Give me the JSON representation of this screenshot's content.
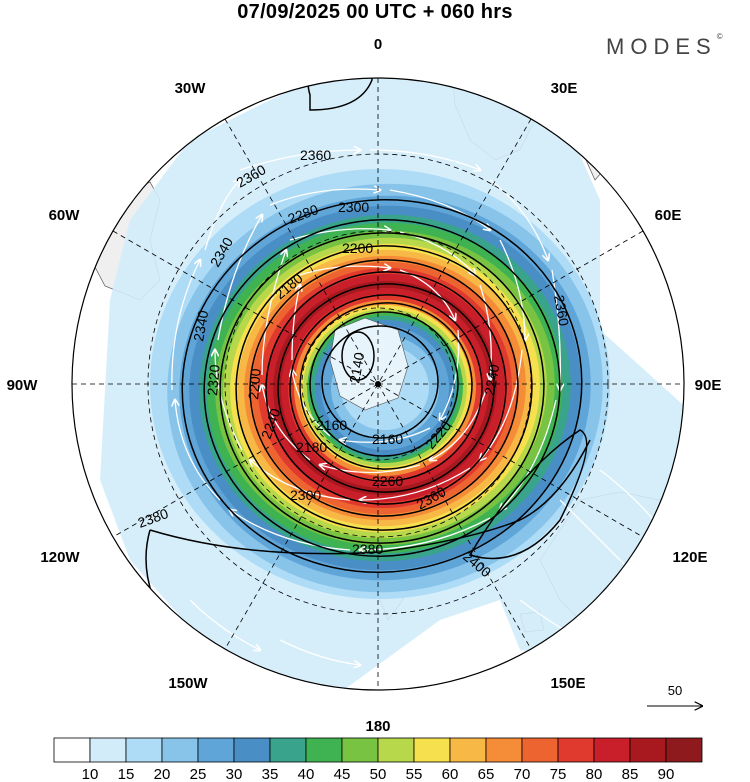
{
  "title": "07/09/2025  00 UTC  + 060 hrs",
  "brand": "MODES",
  "brand_mark": "©",
  "longitude_labels": [
    "0",
    "30E",
    "60E",
    "90E",
    "120E",
    "150E",
    "180",
    "150W",
    "120W",
    "90W",
    "60W",
    "30W"
  ],
  "contour_labels": [
    "2140",
    "2160",
    "2160",
    "2180",
    "2180",
    "2200",
    "2200",
    "2220",
    "2240",
    "2240",
    "2260",
    "2280",
    "2300",
    "2300",
    "2320",
    "2340",
    "2340",
    "2360",
    "2360",
    "2360",
    "2360",
    "2380",
    "2380",
    "2400"
  ],
  "vector_reference": "50",
  "colorbar": {
    "colors": [
      "#ffffff",
      "#d2ecfa",
      "#aedcf6",
      "#88c4ea",
      "#5fa5d8",
      "#4a8ec6",
      "#3aa38c",
      "#3fb352",
      "#78c442",
      "#b7d84b",
      "#f7e04e",
      "#f8b846",
      "#f58c37",
      "#ee6431",
      "#e03a2e",
      "#c81f2b",
      "#a8191f",
      "#8e1a1d"
    ],
    "ticks": [
      "10",
      "15",
      "20",
      "25",
      "30",
      "35",
      "40",
      "45",
      "50",
      "55",
      "60",
      "65",
      "70",
      "75",
      "80",
      "85",
      "90"
    ]
  },
  "icons": {
    "north_pole_marker": "pole-dot-icon",
    "vector_arrow": "reference-arrow-icon"
  }
}
